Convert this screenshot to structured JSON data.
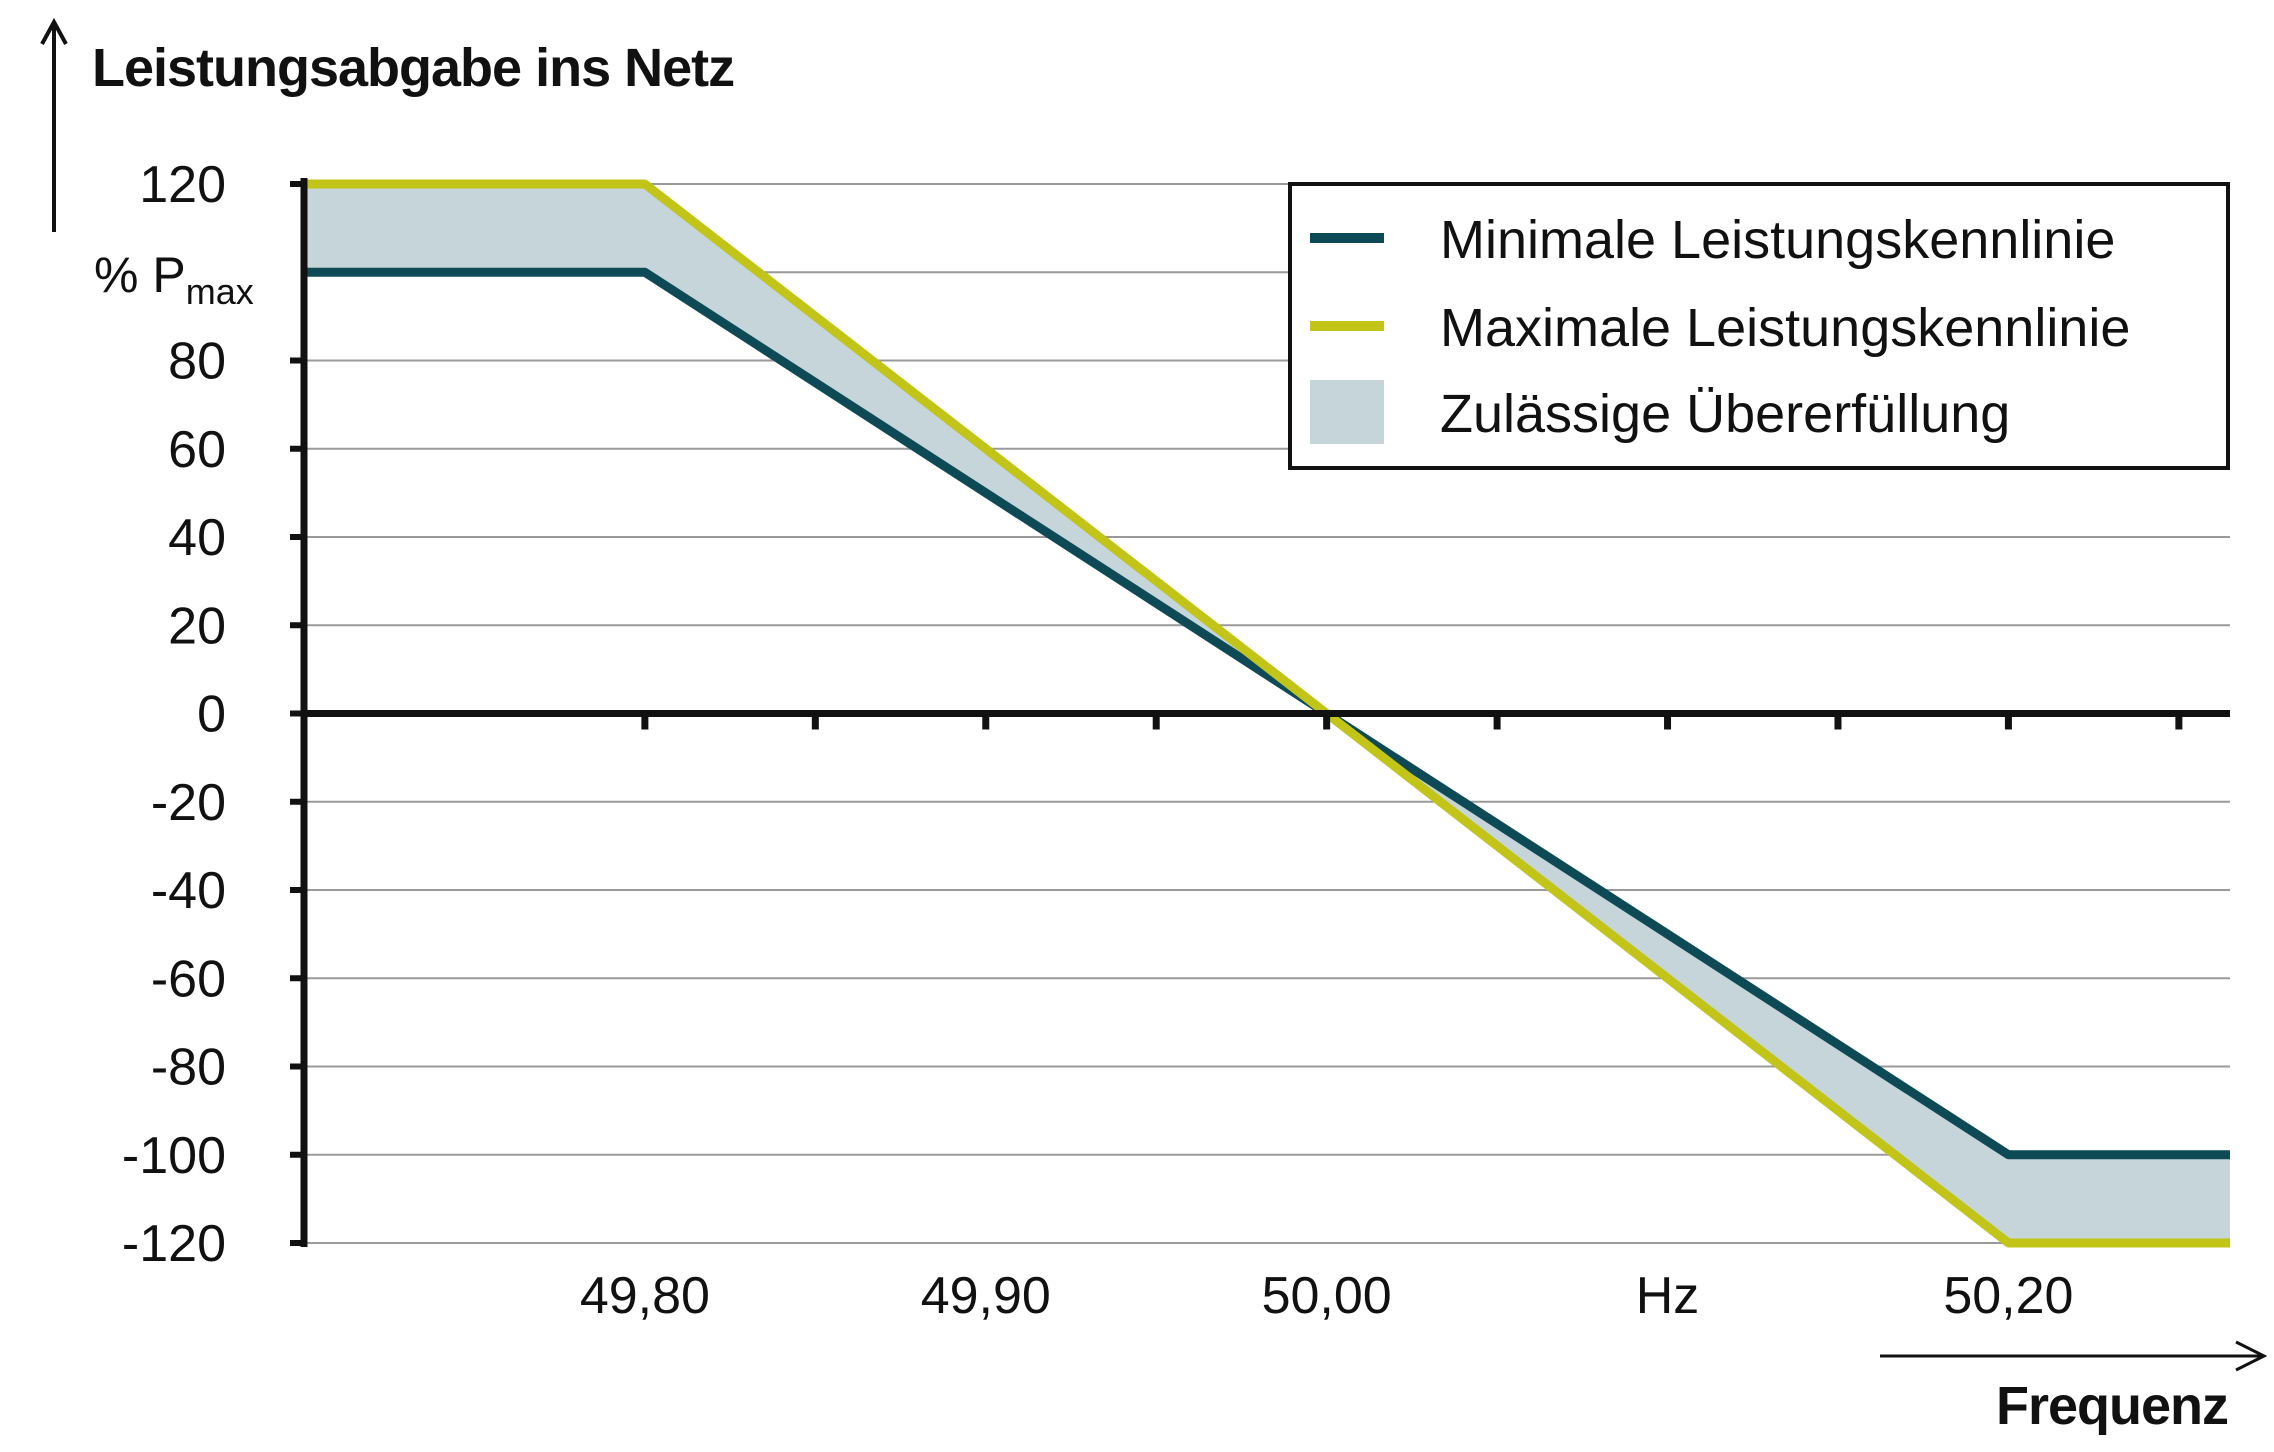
{
  "chart_data": {
    "type": "line",
    "title": "",
    "ylabel": "Leistungsabgabe ins Netz",
    "yunit": {
      "main": "% P",
      "sub": "max"
    },
    "xlabel": "Frequenz",
    "ylim": [
      -120,
      120
    ],
    "xlim": [
      49.7,
      50.265
    ],
    "yticks": [
      120,
      80,
      60,
      40,
      20,
      0,
      -20,
      -40,
      -60,
      -80,
      -100,
      -120
    ],
    "ytick_labels": [
      "120",
      "80",
      "60",
      "40",
      "20",
      "0",
      "-20",
      "-40",
      "-60",
      "-80",
      "-100",
      "-120"
    ],
    "xtick_marks": [
      49.8,
      49.85,
      49.9,
      49.95,
      50.0,
      50.05,
      50.1,
      50.15,
      50.2,
      50.25
    ],
    "xtick_labels": [
      {
        "x": 49.8,
        "text": "49,80"
      },
      {
        "x": 49.9,
        "text": "49,90"
      },
      {
        "x": 50.0,
        "text": "50,00"
      },
      {
        "x": 50.1,
        "text": "Hz"
      },
      {
        "x": 50.2,
        "text": "50,20"
      }
    ],
    "grid": true,
    "legend_position": "top-right",
    "series": [
      {
        "name": "Minimale Leistungskennlinie",
        "color": "#0e4a55",
        "x": [
          49.7,
          49.8,
          50.0,
          50.2,
          50.265
        ],
        "y": [
          100,
          100,
          0,
          -100,
          -100
        ]
      },
      {
        "name": "Maximale Leistungskennlinie",
        "color": "#c2c417",
        "x": [
          49.7,
          49.8,
          50.0,
          50.2,
          50.265
        ],
        "y": [
          120,
          120,
          0,
          -120,
          -120
        ]
      }
    ],
    "band": {
      "name": "Zulässige Übererfüllung",
      "color": "#c5d5d9"
    }
  }
}
